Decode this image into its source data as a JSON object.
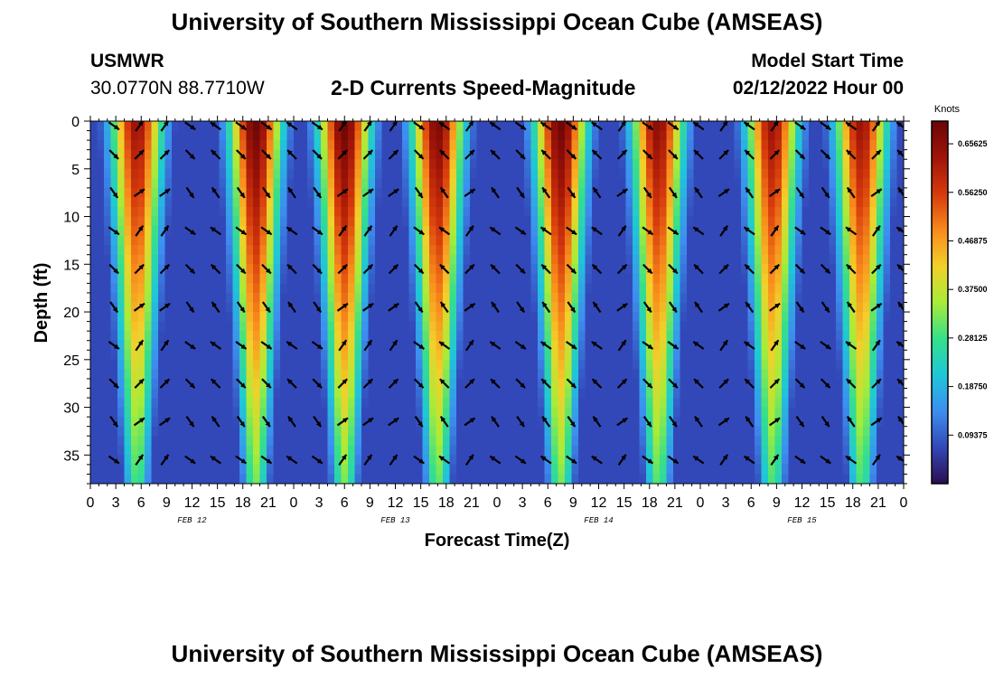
{
  "chart_data": {
    "type": "heatmap",
    "title": "University of Southern Mississippi Ocean Cube (AMSEAS)",
    "subtitle": "2-D Currents Speed-Magnitude",
    "station": "USMWR",
    "location": "30.0770N  88.7710W",
    "model_start_label": "Model Start Time",
    "model_start_value": "02/12/2022 Hour 00",
    "xlabel": "Forecast Time(Z)",
    "ylabel": "Depth (ft)",
    "x_hours_range": [
      0,
      96
    ],
    "ylim": [
      0,
      38
    ],
    "y_ticks": [
      0,
      5,
      10,
      15,
      20,
      25,
      30,
      35
    ],
    "x_tick_labels": [
      "0",
      "3",
      "6",
      "9",
      "12",
      "15",
      "18",
      "21",
      "0",
      "3",
      "6",
      "9",
      "12",
      "15",
      "18",
      "21",
      "0",
      "3",
      "6",
      "9",
      "12",
      "15",
      "18",
      "21",
      "0",
      "3",
      "6",
      "9",
      "12",
      "15",
      "18",
      "21",
      "0"
    ],
    "date_labels": [
      {
        "hour": 12,
        "text": "FEB 12"
      },
      {
        "hour": 36,
        "text": "FEB 13"
      },
      {
        "hour": 60,
        "text": "FEB 14"
      },
      {
        "hour": 84,
        "text": "FEB 15"
      }
    ],
    "colorbar": {
      "units": "Knots",
      "min": 0,
      "max": 0.7,
      "ticks": [
        "0.65625",
        "0.56250",
        "0.46875",
        "0.37500",
        "0.28125",
        "0.18750",
        "0.09375"
      ],
      "tick_values": [
        0.65625,
        0.5625,
        0.46875,
        0.375,
        0.28125,
        0.1875,
        0.09375
      ],
      "colors": [
        "#2a0e52",
        "#3348b8",
        "#3d8ef0",
        "#1ec7d8",
        "#35e08a",
        "#a8ec38",
        "#f2d02a",
        "#f98a1c",
        "#d63a0c",
        "#a01408",
        "#6a0606"
      ]
    },
    "speed_peaks_knots": [
      {
        "hour": 5.5,
        "peak": 0.64
      },
      {
        "hour": 19.5,
        "peak": 0.7
      },
      {
        "hour": 30,
        "peak": 0.7
      },
      {
        "hour": 41,
        "peak": 0.68
      },
      {
        "hour": 55.5,
        "peak": 0.7
      },
      {
        "hour": 67,
        "peak": 0.66
      },
      {
        "hour": 80.5,
        "peak": 0.64
      },
      {
        "hour": 91,
        "peak": 0.64
      }
    ],
    "vector_hours": [
      3,
      6,
      9,
      12,
      15,
      18,
      21,
      24,
      27,
      30,
      33,
      36,
      39,
      42,
      45,
      48,
      51,
      54,
      57,
      60,
      63,
      66,
      69,
      72,
      75,
      78,
      81,
      84,
      87,
      90,
      93,
      96
    ],
    "vector_depths_ft": [
      0.5,
      3.5,
      7.5,
      11.5,
      15.5,
      19.5,
      23.5,
      27.5,
      31.5,
      35.5
    ],
    "vector_directions_deg": [
      135,
      45,
      45,
      135,
      315,
      135,
      135,
      315,
      135,
      45,
      45,
      45,
      135,
      315,
      45,
      315,
      135,
      315,
      135,
      315,
      45,
      135,
      135,
      315,
      45,
      315,
      45,
      135,
      135,
      315,
      45,
      315
    ]
  }
}
